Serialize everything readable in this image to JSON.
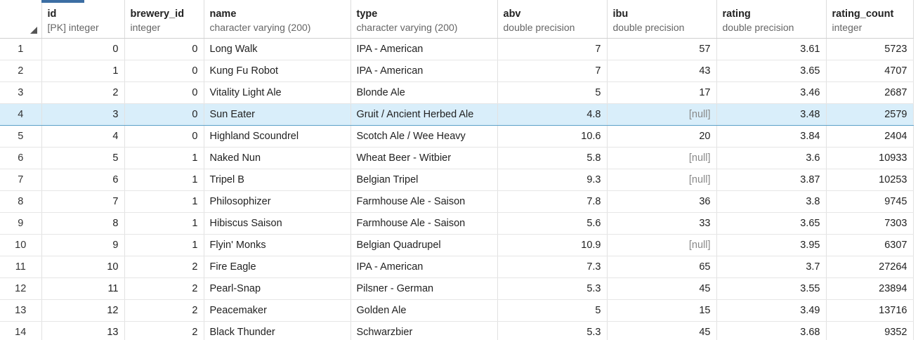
{
  "accent_color": "#3c6ea3",
  "selected_row_color": "#d9eefa",
  "selected_row_index": 3,
  "columns": [
    {
      "key": "id",
      "name": "id",
      "type": "[PK] integer",
      "align": "num"
    },
    {
      "key": "brewery_id",
      "name": "brewery_id",
      "type": "integer",
      "align": "num"
    },
    {
      "key": "name",
      "name": "name",
      "type": "character varying (200)",
      "align": "txt"
    },
    {
      "key": "type",
      "name": "type",
      "type": "character varying (200)",
      "align": "txt"
    },
    {
      "key": "abv",
      "name": "abv",
      "type": "double precision",
      "align": "num"
    },
    {
      "key": "ibu",
      "name": "ibu",
      "type": "double precision",
      "align": "num"
    },
    {
      "key": "rating",
      "name": "rating",
      "type": "double precision",
      "align": "num"
    },
    {
      "key": "rating_count",
      "name": "rating_count",
      "type": "integer",
      "align": "num"
    }
  ],
  "rows": [
    {
      "num": "1",
      "cells": [
        "0",
        "0",
        "Long Walk",
        "IPA - American",
        "7",
        "57",
        "3.61",
        "5723"
      ]
    },
    {
      "num": "2",
      "cells": [
        "1",
        "0",
        "Kung Fu Robot",
        "IPA - American",
        "7",
        "43",
        "3.65",
        "4707"
      ]
    },
    {
      "num": "3",
      "cells": [
        "2",
        "0",
        "Vitality Light Ale",
        "Blonde Ale",
        "5",
        "17",
        "3.46",
        "2687"
      ]
    },
    {
      "num": "4",
      "cells": [
        "3",
        "0",
        "Sun Eater",
        "Gruit / Ancient Herbed Ale",
        "4.8",
        "[null]",
        "3.48",
        "2579"
      ]
    },
    {
      "num": "5",
      "cells": [
        "4",
        "0",
        "Highland Scoundrel",
        "Scotch Ale / Wee Heavy",
        "10.6",
        "20",
        "3.84",
        "2404"
      ]
    },
    {
      "num": "6",
      "cells": [
        "5",
        "1",
        "Naked Nun",
        "Wheat Beer - Witbier",
        "5.8",
        "[null]",
        "3.6",
        "10933"
      ]
    },
    {
      "num": "7",
      "cells": [
        "6",
        "1",
        "Tripel B",
        "Belgian Tripel",
        "9.3",
        "[null]",
        "3.87",
        "10253"
      ]
    },
    {
      "num": "8",
      "cells": [
        "7",
        "1",
        "Philosophizer",
        "Farmhouse Ale - Saison",
        "7.8",
        "36",
        "3.8",
        "9745"
      ]
    },
    {
      "num": "9",
      "cells": [
        "8",
        "1",
        "Hibiscus Saison",
        "Farmhouse Ale - Saison",
        "5.6",
        "33",
        "3.65",
        "7303"
      ]
    },
    {
      "num": "10",
      "cells": [
        "9",
        "1",
        "Flyin' Monks",
        "Belgian Quadrupel",
        "10.9",
        "[null]",
        "3.95",
        "6307"
      ]
    },
    {
      "num": "11",
      "cells": [
        "10",
        "2",
        "Fire Eagle",
        "IPA - American",
        "7.3",
        "65",
        "3.7",
        "27264"
      ]
    },
    {
      "num": "12",
      "cells": [
        "11",
        "2",
        "Pearl-Snap",
        "Pilsner - German",
        "5.3",
        "45",
        "3.55",
        "23894"
      ]
    },
    {
      "num": "13",
      "cells": [
        "12",
        "2",
        "Peacemaker",
        "Golden Ale",
        "5",
        "15",
        "3.49",
        "13716"
      ]
    },
    {
      "num": "14",
      "cells": [
        "13",
        "2",
        "Black Thunder",
        "Schwarzbier",
        "5.3",
        "45",
        "3.68",
        "9352"
      ]
    }
  ]
}
